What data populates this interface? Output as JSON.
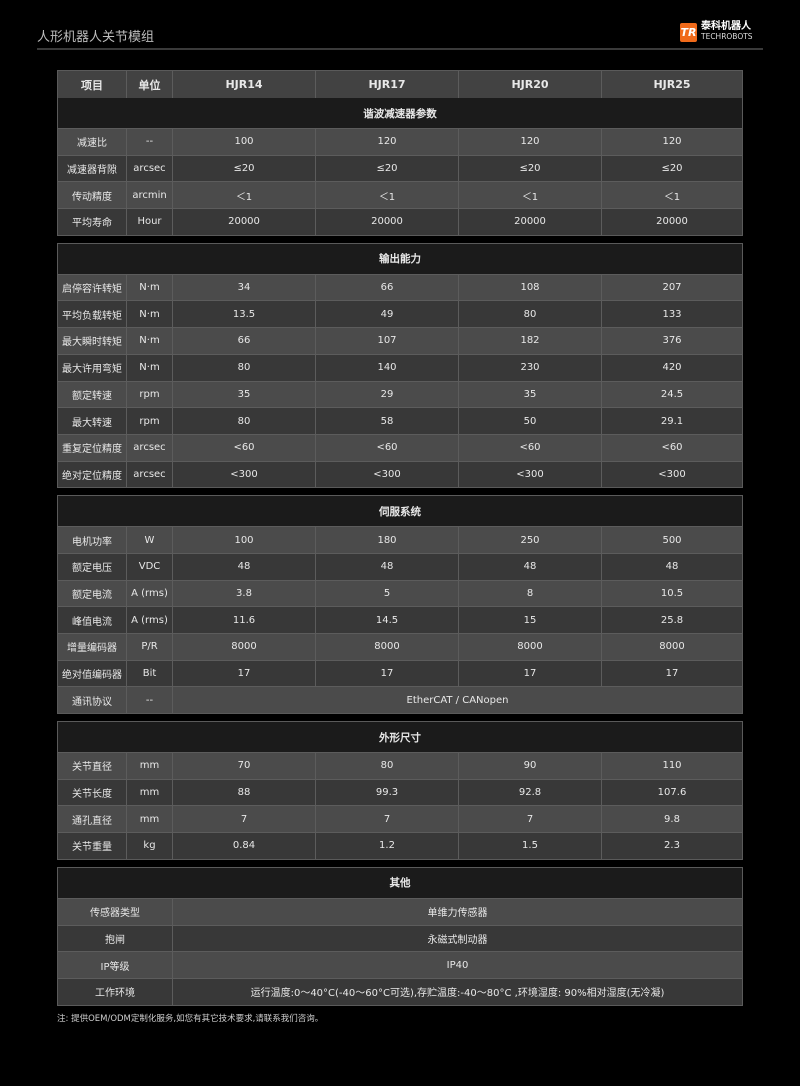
{
  "header": {
    "title": "人形机器人关节模组",
    "logo_cn": "泰科机器人",
    "logo_en": "TECHROBOTS",
    "logo_mark": "TR"
  },
  "colors": {
    "accent": "#f06a1a",
    "row_light": "#4b4b4b",
    "row_dark": "#383838",
    "section": "#1b1b1b"
  },
  "table": {
    "columns": [
      "项目",
      "单位",
      "HJR14",
      "HJR17",
      "HJR20",
      "HJR25"
    ],
    "sections": [
      {
        "title": "谐波减速器参数",
        "rows": [
          [
            "减速比",
            "--",
            "100",
            "120",
            "120",
            "120"
          ],
          [
            "减速器背隙",
            "arcsec",
            "≤20",
            "≤20",
            "≤20",
            "≤20"
          ],
          [
            "传动精度",
            "arcmin",
            "＜1",
            "＜1",
            "＜1",
            "＜1"
          ],
          [
            "平均寿命",
            "Hour",
            "20000",
            "20000",
            "20000",
            "20000"
          ]
        ]
      },
      {
        "title": "输出能力",
        "rows": [
          [
            "启停容许转矩",
            "N·m",
            "34",
            "66",
            "108",
            "207"
          ],
          [
            "平均负载转矩",
            "N·m",
            "13.5",
            "49",
            "80",
            "133"
          ],
          [
            "最大瞬时转矩",
            "N·m",
            "66",
            "107",
            "182",
            "376"
          ],
          [
            "最大许用弯矩",
            "N·m",
            "80",
            "140",
            "230",
            "420"
          ],
          [
            "额定转速",
            "rpm",
            "35",
            "29",
            "35",
            "24.5"
          ],
          [
            "最大转速",
            "rpm",
            "80",
            "58",
            "50",
            "29.1"
          ],
          [
            "重复定位精度",
            "arcsec",
            "<60",
            "<60",
            "<60",
            "<60"
          ],
          [
            "绝对定位精度",
            "arcsec",
            "<300",
            "<300",
            "<300",
            "<300"
          ]
        ]
      },
      {
        "title": "伺服系统",
        "rows": [
          [
            "电机功率",
            "W",
            "100",
            "180",
            "250",
            "500"
          ],
          [
            "额定电压",
            "VDC",
            "48",
            "48",
            "48",
            "48"
          ],
          [
            "额定电流",
            "A (rms)",
            "3.8",
            "5",
            "8",
            "10.5"
          ],
          [
            "峰值电流",
            "A (rms)",
            "11.6",
            "14.5",
            "15",
            "25.8"
          ],
          [
            "增量编码器",
            "P/R",
            "8000",
            "8000",
            "8000",
            "8000"
          ],
          [
            "绝对值编码器",
            "Bit",
            "17",
            "17",
            "17",
            "17"
          ],
          [
            "通讯协议",
            "--",
            "EtherCAT / CANopen"
          ]
        ]
      },
      {
        "title": "外形尺寸",
        "rows": [
          [
            "关节直径",
            "mm",
            "70",
            "80",
            "90",
            "110"
          ],
          [
            "关节长度",
            "mm",
            "88",
            "99.3",
            "92.8",
            "107.6"
          ],
          [
            "通孔直径",
            "mm",
            "7",
            "7",
            "7",
            "9.8"
          ],
          [
            "关节重量",
            "kg",
            "0.84",
            "1.2",
            "1.5",
            "2.3"
          ]
        ]
      },
      {
        "title": "其他",
        "rows": [
          [
            "传感器类型",
            "单维力传感器"
          ],
          [
            "抱闸",
            "永磁式制动器"
          ],
          [
            "IP等级",
            "IP40"
          ],
          [
            "工作环境",
            "运行温度:0～40°C(-40～60°C可选),存贮温度:-40～80°C ,环境湿度: 90%相对湿度(无冷凝)"
          ]
        ]
      }
    ]
  },
  "note": "注: 提供OEM/ODM定制化服务,如您有其它技术要求,请联系我们咨询。"
}
